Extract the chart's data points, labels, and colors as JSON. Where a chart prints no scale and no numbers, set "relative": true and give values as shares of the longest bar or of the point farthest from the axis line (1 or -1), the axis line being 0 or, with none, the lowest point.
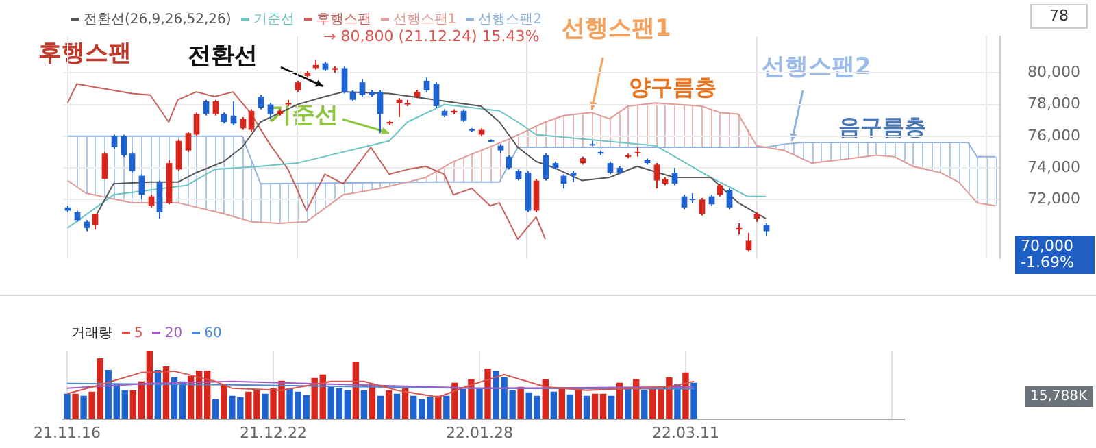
{
  "chart_data": [
    {
      "type": "candlestick",
      "legend": "top left",
      "grid": true,
      "tick_labels": "y",
      "marker": "none",
      "line_style": "solid",
      "categories": [
        null,
        null,
        null,
        null,
        null,
        null,
        null,
        null,
        null,
        null,
        null,
        null,
        null,
        null,
        null,
        null,
        null,
        null,
        null,
        null,
        null,
        null,
        null,
        null,
        null,
        null,
        null,
        null,
        null,
        null,
        null,
        null,
        null,
        null,
        null,
        null,
        null,
        null,
        null,
        null,
        null,
        null,
        null,
        null,
        null,
        null,
        null,
        null,
        null,
        null,
        null,
        null,
        null,
        null,
        null,
        null,
        null,
        null,
        null,
        null,
        null,
        null,
        null,
        null,
        null,
        null,
        null,
        null,
        null,
        null,
        null,
        null,
        null,
        null,
        null,
        null,
        null,
        null,
        null,
        null,
        null,
        null,
        null,
        null,
        null,
        null,
        null,
        null,
        null,
        null,
        null,
        null,
        null,
        null,
        null,
        null,
        null,
        null,
        null,
        null,
        null,
        null
      ],
      "ylim": [
        68300,
        82300
      ],
      "yticks": [
        {
          "value": 72000,
          "label": "72,000"
        },
        {
          "value": 74000,
          "label": "74,000"
        },
        {
          "value": 76000,
          "label": "76,000"
        },
        {
          "value": 78000,
          "label": "78,000"
        },
        {
          "value": 80000,
          "label": "80,000"
        }
      ],
      "ohlc": [
        [
          71500,
          71600,
          71200,
          71300
        ],
        [
          71200,
          71300,
          70600,
          70700
        ],
        [
          70600,
          70700,
          70000,
          70200
        ],
        [
          70400,
          71100,
          70100,
          71100
        ],
        [
          73300,
          75000,
          73300,
          74900
        ],
        [
          76000,
          76100,
          75200,
          75300
        ],
        [
          76000,
          76100,
          74700,
          74800
        ],
        [
          74900,
          75000,
          73700,
          73800
        ],
        [
          73500,
          73600,
          72000,
          72300
        ],
        [
          71600,
          72300,
          71500,
          72200
        ],
        [
          73100,
          73200,
          70800,
          71200
        ],
        [
          71800,
          74500,
          71700,
          74300
        ],
        [
          73900,
          75800,
          73800,
          75700
        ],
        [
          75100,
          76300,
          75000,
          76200
        ],
        [
          76100,
          77500,
          76000,
          77400
        ],
        [
          78200,
          78300,
          77300,
          77400
        ],
        [
          77400,
          78300,
          77300,
          78200
        ],
        [
          77400,
          77500,
          76800,
          76900
        ],
        [
          77300,
          78200,
          76700,
          76800
        ],
        [
          76500,
          77200,
          76400,
          77100
        ],
        [
          76400,
          77700,
          76300,
          77600
        ],
        [
          78500,
          78600,
          77700,
          77800
        ],
        [
          78000,
          78100,
          77100,
          77400
        ],
        [
          77400,
          77700,
          77300,
          77600
        ],
        [
          78000,
          78300,
          77900,
          78100
        ],
        [
          78900,
          79500,
          78800,
          79400
        ],
        [
          79800,
          80100,
          79700,
          80000
        ],
        [
          80300,
          80800,
          80200,
          80500
        ],
        [
          80600,
          80700,
          80100,
          80200
        ],
        [
          80200,
          80400,
          80000,
          80300
        ],
        [
          80300,
          80400,
          78700,
          78800
        ],
        [
          78800,
          78900,
          78200,
          78300
        ],
        [
          79400,
          79600,
          78500,
          78600
        ],
        [
          78800,
          78900,
          78500,
          78600
        ],
        [
          78800,
          78900,
          76200,
          77400
        ],
        [
          76800,
          77000,
          76700,
          76900
        ],
        [
          78100,
          78400,
          77200,
          78300
        ],
        [
          78000,
          78300,
          77900,
          78100
        ],
        [
          78500,
          78900,
          78400,
          78800
        ],
        [
          79500,
          79700,
          78800,
          78900
        ],
        [
          79300,
          79400,
          77800,
          77900
        ],
        [
          77600,
          77700,
          77200,
          77300
        ],
        [
          77500,
          77700,
          77400,
          77600
        ],
        [
          77600,
          77700,
          76900,
          77000
        ],
        [
          76450,
          76500,
          76300,
          76350
        ],
        [
          76100,
          76500,
          76000,
          76400
        ],
        [
          75750,
          75800,
          75600,
          75650
        ],
        [
          75400,
          75500,
          74900,
          75100
        ],
        [
          74700,
          74800,
          73900,
          74000
        ],
        [
          73800,
          73900,
          73200,
          73300
        ],
        [
          73700,
          73800,
          71200,
          71300
        ],
        [
          71300,
          73300,
          71200,
          73200
        ],
        [
          74800,
          74900,
          73200,
          73300
        ],
        [
          74300,
          74400,
          73900,
          74000
        ],
        [
          73500,
          73600,
          72700,
          73000
        ],
        [
          73700,
          73800,
          73100,
          73500
        ],
        [
          74300,
          74700,
          74200,
          74600
        ],
        [
          75500,
          75700,
          75400,
          75450
        ],
        [
          75000,
          75100,
          74800,
          74900
        ],
        [
          74300,
          74400,
          73600,
          73700
        ],
        [
          74000,
          74100,
          73600,
          73700
        ],
        [
          74700,
          74900,
          74600,
          74800
        ],
        [
          74950,
          75300,
          74700,
          75000
        ],
        [
          74500,
          74600,
          74200,
          74300
        ],
        [
          73200,
          74300,
          72700,
          74200
        ],
        [
          73000,
          73400,
          72900,
          73300
        ],
        [
          73700,
          74000,
          72900,
          73000
        ],
        [
          72200,
          72300,
          71400,
          71500
        ],
        [
          72050,
          72400,
          71800,
          72000
        ],
        [
          71100,
          72100,
          71000,
          72000
        ],
        [
          72200,
          72300,
          71600,
          71700
        ],
        [
          72300,
          73000,
          72200,
          72900
        ],
        [
          72600,
          72700,
          71400,
          71500
        ],
        [
          70100,
          70500,
          69800,
          70200
        ],
        [
          68800,
          69900,
          68700,
          69400
        ],
        [
          70800,
          71200,
          70600,
          71100
        ],
        [
          70400,
          70500,
          69700,
          70000
        ],
        null,
        null,
        null,
        null,
        null,
        null,
        null,
        null,
        null,
        null,
        null,
        null,
        null,
        null,
        null,
        null,
        null,
        null,
        null,
        null,
        null,
        null,
        null,
        null,
        null
      ],
      "series": [
        {
          "name": "전환선(26,9,26,52,26)",
          "type": "line",
          "color": "#555555",
          "values": [
            null,
            null,
            null,
            70900,
            null,
            73000,
            null,
            null,
            null,
            73100,
            null,
            null,
            73100,
            null,
            73700,
            null,
            null,
            74400,
            null,
            75300,
            null,
            76900,
            null,
            null,
            null,
            78000,
            null,
            null,
            78500,
            null,
            78800,
            null,
            null,
            null,
            null,
            78700,
            null,
            null,
            null,
            null,
            78300,
            null,
            null,
            null,
            null,
            77900,
            null,
            76900,
            null,
            75300,
            null,
            74400,
            null,
            74000,
            null,
            null,
            73200,
            null,
            null,
            73400,
            null,
            null,
            74100,
            null,
            null,
            null,
            73400,
            null,
            null,
            null,
            73400,
            null,
            null,
            71800,
            null,
            null,
            70800,
            null,
            null,
            null,
            null,
            null,
            null,
            null,
            null,
            null,
            null,
            null,
            null,
            null,
            null,
            null,
            null,
            null,
            null,
            null,
            null,
            null,
            null,
            null,
            null,
            null
          ]
        },
        {
          "name": "기준선",
          "type": "line",
          "color": "#6cc5c5",
          "values": [
            70200,
            null,
            null,
            null,
            null,
            72300,
            null,
            null,
            null,
            null,
            null,
            null,
            null,
            72900,
            null,
            null,
            73900,
            null,
            null,
            null,
            null,
            74100,
            null,
            null,
            null,
            74300,
            null,
            null,
            null,
            null,
            null,
            null,
            null,
            null,
            null,
            75700,
            null,
            76900,
            null,
            null,
            null,
            78000,
            null,
            null,
            null,
            null,
            null,
            77600,
            null,
            76900,
            null,
            76100,
            null,
            null,
            null,
            null,
            null,
            null,
            null,
            null,
            null,
            null,
            null,
            null,
            75400,
            null,
            null,
            null,
            null,
            null,
            73400,
            null,
            null,
            null,
            72200,
            null,
            72200,
            null,
            null,
            null,
            null,
            null,
            null,
            null,
            null,
            null,
            null,
            null,
            null,
            null,
            null,
            null,
            null,
            null,
            null,
            null,
            null,
            null,
            null,
            null,
            null,
            null
          ]
        },
        {
          "name": "후행스팬",
          "type": "line",
          "color": "#c9605a",
          "values": [
            78100,
            79300,
            null,
            null,
            79000,
            null,
            null,
            78700,
            null,
            78600,
            null,
            76900,
            78300,
            null,
            78800,
            null,
            78500,
            null,
            78800,
            null,
            77400,
            null,
            75500,
            null,
            73900,
            null,
            71300,
            null,
            73600,
            null,
            73000,
            null,
            null,
            75300,
            null,
            73600,
            null,
            73900,
            null,
            74100,
            null,
            73600,
            72300,
            null,
            72700,
            null,
            71600,
            71800,
            null,
            69500,
            null,
            70900,
            69500,
            null,
            null,
            null,
            null,
            null,
            null,
            null,
            null,
            null,
            null,
            null,
            null,
            null,
            null,
            null,
            null,
            null,
            null,
            null,
            null,
            null,
            null,
            null,
            null,
            null,
            null,
            null,
            null,
            null,
            null,
            null,
            null,
            null,
            null,
            null,
            null,
            null,
            null,
            null,
            null,
            null,
            null,
            null,
            null,
            null,
            null,
            null,
            null,
            null
          ]
        },
        {
          "name": "선행스팬1",
          "type": "line",
          "color": "#e29a96",
          "values": [
            73200,
            null,
            72400,
            null,
            null,
            null,
            null,
            71800,
            null,
            null,
            null,
            null,
            71800,
            null,
            null,
            null,
            null,
            71100,
            null,
            null,
            70600,
            null,
            null,
            70500,
            null,
            null,
            70600,
            null,
            null,
            null,
            72300,
            null,
            null,
            null,
            72700,
            null,
            null,
            73100,
            null,
            73400,
            null,
            null,
            74400,
            null,
            null,
            75100,
            null,
            null,
            75800,
            null,
            null,
            null,
            76900,
            null,
            77300,
            null,
            null,
            77500,
            null,
            77100,
            null,
            77900,
            null,
            null,
            78100,
            null,
            null,
            null,
            null,
            77900,
            null,
            77500,
            null,
            77400,
            null,
            75400,
            null,
            null,
            75100,
            null,
            null,
            74300,
            null,
            null,
            74500,
            null,
            null,
            null,
            74800,
            null,
            74700,
            null,
            74100,
            null,
            null,
            73700,
            null,
            73100,
            null,
            71800,
            null,
            71600
          ]
        },
        {
          "name": "선행스팬2",
          "type": "line",
          "color": "#8fb2de",
          "values": [
            76000,
            null,
            null,
            null,
            null,
            null,
            null,
            null,
            null,
            null,
            null,
            null,
            null,
            null,
            null,
            null,
            null,
            null,
            null,
            76000,
            null,
            73000,
            null,
            null,
            null,
            null,
            null,
            null,
            null,
            null,
            null,
            null,
            null,
            null,
            null,
            null,
            null,
            null,
            null,
            null,
            73100,
            null,
            null,
            null,
            null,
            null,
            null,
            73100,
            null,
            75300,
            null,
            null,
            null,
            null,
            null,
            null,
            null,
            null,
            null,
            null,
            null,
            null,
            null,
            null,
            null,
            null,
            null,
            null,
            null,
            null,
            null,
            null,
            null,
            null,
            null,
            null,
            75300,
            null,
            75500,
            null,
            75600,
            null,
            null,
            null,
            null,
            null,
            null,
            null,
            null,
            null,
            null,
            null,
            null,
            null,
            null,
            null,
            null,
            null,
            75600,
            74700,
            null,
            74700
          ]
        }
      ],
      "annotations": [
        "→ 80,800 (21.12.24) 15.43%",
        "후행스팬",
        "전환선",
        "기준선",
        "선행스팬1",
        "양구름층",
        "선행스팬2",
        "음구름층",
        "78",
        "70,000 -1.69%"
      ]
    },
    {
      "type": "bar",
      "relative": true,
      "legend": "top left",
      "grid": "x",
      "tick_labels": "x",
      "marker": "none",
      "categories": [
        "21.11.16",
        null,
        null,
        null,
        null,
        null,
        null,
        null,
        null,
        null,
        null,
        null,
        null,
        null,
        null,
        null,
        null,
        null,
        null,
        null,
        null,
        null,
        null,
        null,
        null,
        "21.12.22",
        null,
        null,
        null,
        null,
        null,
        null,
        null,
        null,
        null,
        null,
        null,
        null,
        null,
        null,
        null,
        null,
        null,
        null,
        null,
        null,
        null,
        null,
        null,
        null,
        "22.01.28",
        null,
        null,
        null,
        null,
        null,
        null,
        null,
        null,
        null,
        null,
        null,
        null,
        null,
        null,
        null,
        null,
        null,
        null,
        null,
        null,
        null,
        null,
        null,
        null,
        "22.03.11",
        null,
        null,
        null,
        null,
        null,
        null,
        null,
        null,
        null,
        null,
        null,
        null,
        null,
        null,
        null,
        null,
        null,
        null,
        null,
        null,
        null,
        null,
        null,
        null,
        null,
        null
      ],
      "series": [
        {
          "name": "거래량",
          "type": "bar",
          "values": [
            0.37,
            0.37,
            0.34,
            0.4,
            0.89,
            0.72,
            0.51,
            0.42,
            0.42,
            0.55,
            1,
            0.72,
            0.77,
            0.61,
            0.55,
            0.63,
            0.71,
            0.71,
            0.29,
            0.51,
            0.34,
            0.32,
            0.4,
            0.42,
            0.37,
            0.45,
            0.56,
            0.45,
            0.4,
            0.35,
            0.6,
            0.65,
            0.47,
            0.45,
            0.42,
            0.84,
            0.42,
            0.51,
            0.34,
            0.42,
            0.37,
            0.45,
            0.34,
            0.29,
            0.32,
            0.34,
            0.34,
            0.53,
            0.44,
            0.58,
            0.44,
            0.74,
            0.71,
            0.61,
            0.42,
            0.47,
            0.39,
            0.34,
            0.58,
            0.4,
            0.44,
            0.36,
            0.44,
            0.34,
            0.37,
            0.37,
            0.34,
            0.53,
            0.44,
            0.58,
            0.42,
            0.44,
            0.44,
            0.61,
            0.51,
            0.68,
            0.53,
            null,
            null,
            null,
            null,
            null,
            null,
            null,
            null,
            null,
            null,
            null,
            null,
            null,
            null,
            null,
            null,
            null,
            null,
            null,
            null,
            null,
            null,
            null,
            null,
            null
          ],
          "colors": [
            "#1f63d0",
            "#d8261c",
            "#1f63d0",
            "#d8261c",
            "#d8261c",
            "#1f63d0",
            "#1f63d0",
            "#1f63d0",
            "#d8261c",
            "#d8261c",
            "#d8261c",
            "#1f63d0",
            "#d8261c",
            "#1f63d0",
            "#1f63d0",
            "#d8261c",
            "#d8261c",
            "#d8261c",
            "#1f63d0",
            "#d8261c",
            "#1f63d0",
            "#1f63d0",
            "#d8261c",
            "#d8261c",
            "#1f63d0",
            "#d8261c",
            "#d8261c",
            "#1f63d0",
            "#1f63d0",
            "#1f63d0",
            "#d8261c",
            "#d8261c",
            "#1f63d0",
            "#1f63d0",
            "#1f63d0",
            "#d8261c",
            "#1f63d0",
            "#d8261c",
            "#1f63d0",
            "#d8261c",
            "#1f63d0",
            "#d8261c",
            "#1f63d0",
            "#1f63d0",
            "#1f63d0",
            "#d8261c",
            "#1f63d0",
            "#d8261c",
            "#1f63d0",
            "#d8261c",
            "#1f63d0",
            "#d8261c",
            "#1f63d0",
            "#1f63d0",
            "#1f63d0",
            "#d8261c",
            "#1f63d0",
            "#1f63d0",
            "#d8261c",
            "#1f63d0",
            "#d8261c",
            "#1f63d0",
            "#d8261c",
            "#1f63d0",
            "#d8261c",
            "#d8261c",
            "#1f63d0",
            "#d8261c",
            "#1f63d0",
            "#d8261c",
            "#1f63d0",
            "#d8261c",
            "#d8261c",
            "#d8261c",
            "#1f63d0",
            "#d8261c",
            "#1f63d0",
            null,
            null,
            null,
            null,
            null,
            null,
            null,
            null,
            null,
            null,
            null,
            null,
            null,
            null,
            null,
            null,
            null,
            null,
            null,
            null,
            null,
            null,
            null,
            null,
            null
          ]
        },
        {
          "name": "5",
          "type": "line",
          "color": "#d9534f",
          "values": [
            0.37,
            null,
            null,
            null,
            0.5,
            null,
            null,
            null,
            null,
            0.68,
            null,
            null,
            null,
            0.7,
            null,
            null,
            null,
            null,
            0.55,
            null,
            0.45,
            null,
            null,
            null,
            null,
            null,
            0.42,
            null,
            null,
            null,
            null,
            null,
            0.55,
            null,
            null,
            null,
            0.55,
            null,
            null,
            null,
            0.42,
            null,
            null,
            null,
            null,
            0.32,
            null,
            null,
            null,
            0.5,
            null,
            null,
            null,
            0.65,
            null,
            null,
            null,
            null,
            0.47,
            null,
            null,
            null,
            null,
            0.42,
            null,
            null,
            null,
            null,
            null,
            0.45,
            null,
            null,
            null,
            0.47,
            null,
            null,
            0.55,
            null,
            null,
            null,
            null,
            null,
            null,
            null,
            null,
            null,
            null,
            null,
            null,
            null,
            null,
            null,
            null,
            null,
            null,
            null,
            null,
            null,
            null,
            null,
            null,
            null
          ]
        },
        {
          "name": "20",
          "type": "line",
          "color": "#a05cc0",
          "values": [
            0.45,
            null,
            null,
            null,
            null,
            null,
            null,
            null,
            null,
            null,
            0.52,
            null,
            null,
            null,
            null,
            null,
            null,
            null,
            null,
            null,
            0.55,
            null,
            null,
            null,
            null,
            null,
            null,
            null,
            null,
            null,
            null,
            null,
            null,
            null,
            null,
            0.5,
            null,
            null,
            null,
            null,
            null,
            null,
            null,
            null,
            null,
            null,
            null,
            null,
            null,
            null,
            0.45,
            null,
            null,
            null,
            null,
            null,
            null,
            null,
            null,
            null,
            null,
            null,
            null,
            null,
            null,
            null,
            null,
            null,
            null,
            null,
            null,
            null,
            null,
            null,
            null,
            null,
            0.47,
            null,
            null,
            null,
            null,
            null,
            null,
            null,
            null,
            null,
            null,
            null,
            null,
            null,
            null,
            null,
            null,
            null,
            null,
            null,
            null,
            null,
            null,
            null,
            null,
            null
          ]
        },
        {
          "name": "60",
          "type": "line",
          "color": "#4a8ad4",
          "values": [
            0.52,
            null,
            null,
            null,
            null,
            null,
            null,
            null,
            null,
            null,
            null,
            null,
            null,
            null,
            null,
            null,
            null,
            null,
            null,
            null,
            0.5,
            null,
            null,
            null,
            null,
            null,
            null,
            null,
            null,
            null,
            null,
            null,
            null,
            null,
            null,
            null,
            null,
            null,
            null,
            null,
            null,
            null,
            null,
            null,
            null,
            null,
            null,
            null,
            null,
            null,
            0.45,
            null,
            null,
            null,
            null,
            null,
            null,
            null,
            null,
            null,
            null,
            null,
            null,
            null,
            null,
            null,
            null,
            null,
            null,
            null,
            null,
            null,
            null,
            null,
            null,
            null,
            0.44,
            null,
            null,
            null,
            null,
            null,
            null,
            null,
            null,
            null,
            null,
            null,
            null,
            null,
            null,
            null,
            null,
            null,
            null,
            null,
            null,
            null,
            null,
            null,
            null,
            null
          ]
        }
      ],
      "annotations": [
        "15,788K"
      ]
    }
  ]
}
